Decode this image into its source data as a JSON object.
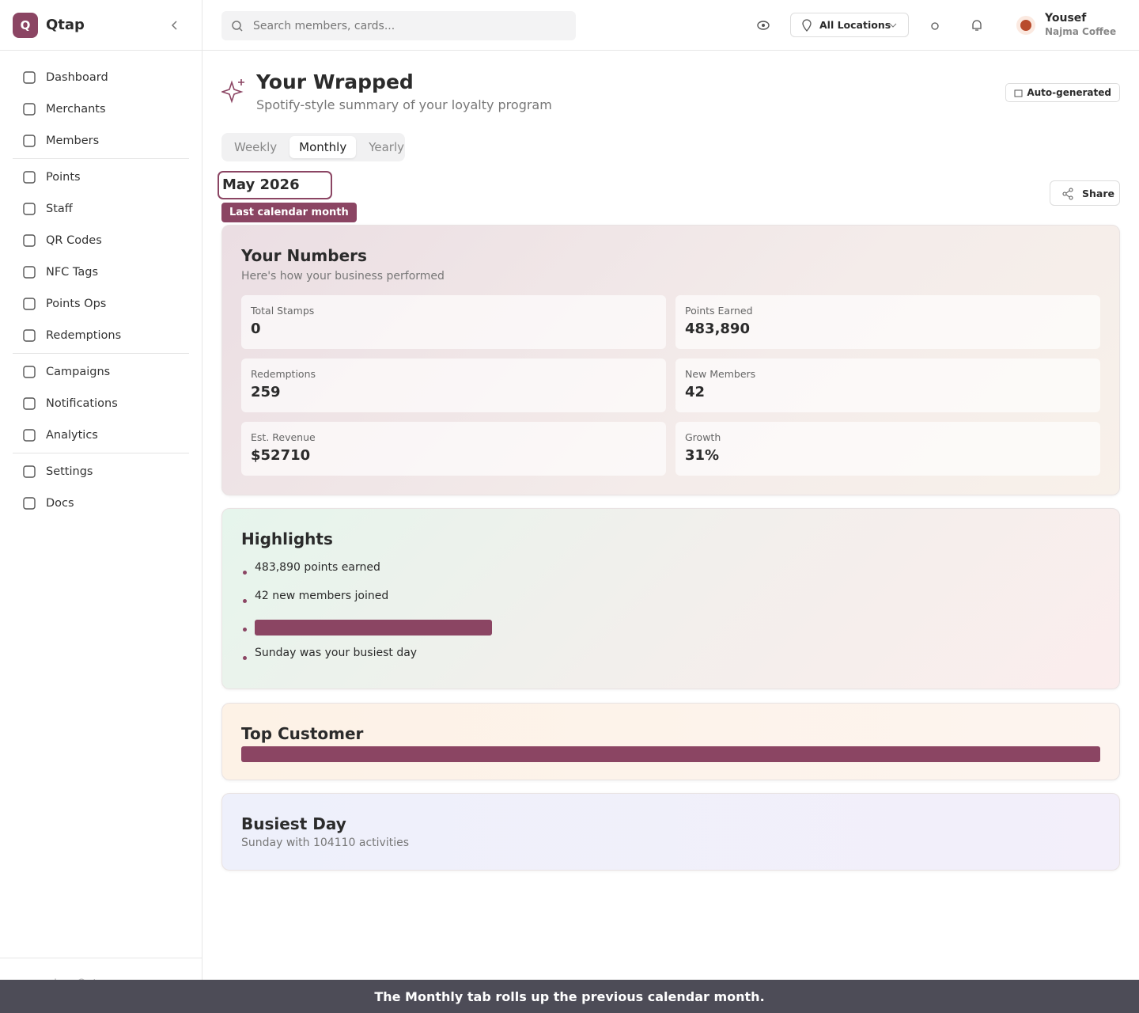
{
  "sidebar": {
    "brand_initial": "Q",
    "brand": "Qtap",
    "nav": [
      [
        "Dashboard",
        "Merchants",
        "Members"
      ],
      [
        "Points",
        "Staff",
        "QR Codes",
        "NFC Tags",
        "Points Ops",
        "Redemptions"
      ],
      [
        "Campaigns",
        "Notifications",
        "Analytics"
      ],
      [
        "Settings",
        "Docs"
      ]
    ],
    "logout": "Log Out"
  },
  "topbar": {
    "search_placeholder": "Search members, cards...",
    "location": "All Locations",
    "user_name": "Yousef",
    "user_org": "Najma Coffee"
  },
  "header": {
    "title": "Your Wrapped",
    "subtitle": "Spotify-style summary of your loyalty program",
    "badge": "Auto-generated"
  },
  "tabs": {
    "items": [
      "Weekly",
      "Monthly",
      "Yearly"
    ],
    "active": 1
  },
  "period": {
    "label": "May 2026",
    "tooltip": "Last calendar month"
  },
  "share": "Share",
  "numbers": {
    "title": "Your Numbers",
    "subtitle": "Here's how your business performed",
    "stats": [
      {
        "label": "Total Stamps",
        "value": "0"
      },
      {
        "label": "Points Earned",
        "value": "483,890"
      },
      {
        "label": "Redemptions",
        "value": "259"
      },
      {
        "label": "New Members",
        "value": "42"
      },
      {
        "label": "Est. Revenue",
        "value": "$52710"
      },
      {
        "label": "Growth",
        "value": "31%"
      }
    ]
  },
  "highlights": {
    "title": "Highlights",
    "items": [
      "483,890 points earned",
      "42 new members joined",
      "Sunday was your busiest day"
    ]
  },
  "top_customer": {
    "title": "Top Customer"
  },
  "busiest_day": {
    "title": "Busiest Day",
    "text": "Sunday with 104110 activities"
  },
  "toast": "The Monthly tab rolls up the previous calendar month."
}
